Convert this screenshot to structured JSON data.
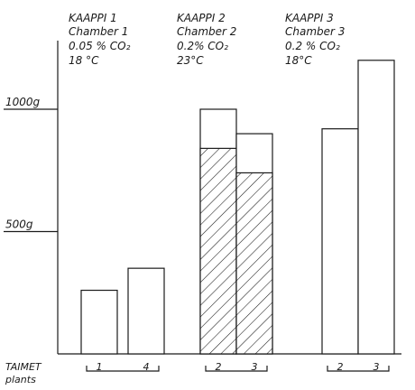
{
  "chart_data": {
    "type": "bar",
    "x_axis_label": [
      "TAIMET",
      "plants"
    ],
    "y_tick_labels": [
      "1000g",
      "500g"
    ],
    "y_ticks": [
      1000,
      500
    ],
    "ylim": [
      0,
      1250
    ],
    "groups": [
      {
        "header": [
          "KAAPPI 1",
          "Chamber 1",
          "0.05 % CO₂",
          "18 °C"
        ],
        "bars": [
          {
            "label": "1",
            "total": 260
          },
          {
            "label": "4",
            "total": 350
          }
        ]
      },
      {
        "header": [
          "KAAPPI 2",
          "Chamber 2",
          "0.2% CO₂",
          "23°C"
        ],
        "bars": [
          {
            "label": "2",
            "total": 1000,
            "hatched": 840
          },
          {
            "label": "3",
            "total": 900,
            "hatched": 740
          }
        ]
      },
      {
        "header": [
          "KAAPPI 3",
          "Chamber 3",
          "0.2 % CO₂",
          "18°C"
        ],
        "bars": [
          {
            "label": "2",
            "total": 920
          },
          {
            "label": "3",
            "total": 1200
          }
        ]
      }
    ]
  }
}
